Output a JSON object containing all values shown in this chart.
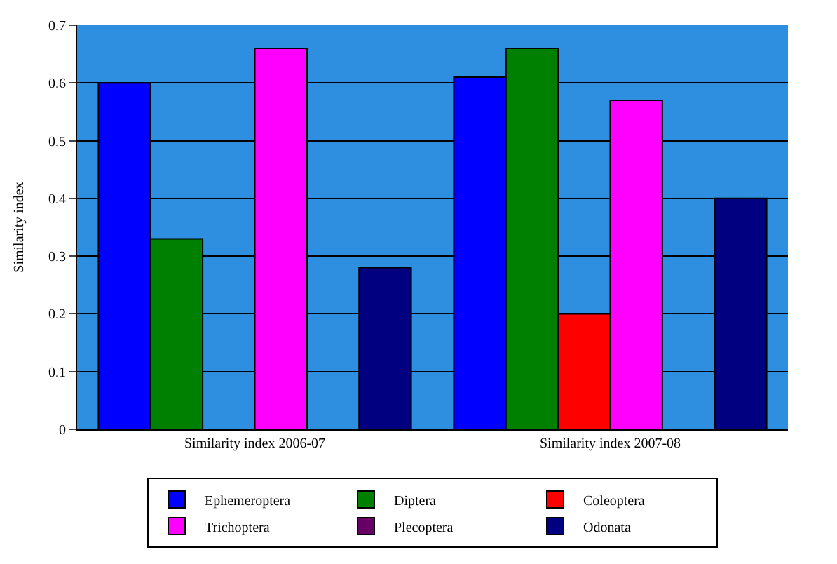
{
  "chart_data": {
    "type": "bar",
    "ylabel": "Similarity index",
    "categories": [
      "Similarity index 2006-07",
      "Similarity index 2007-08"
    ],
    "series": [
      {
        "name": "Ephemeroptera",
        "color": "#0000ff",
        "values": [
          0.6,
          0.61
        ]
      },
      {
        "name": "Diptera",
        "color": "#008000",
        "values": [
          0.33,
          0.66
        ]
      },
      {
        "name": "Coleoptera",
        "color": "#ff0000",
        "values": [
          null,
          0.2
        ]
      },
      {
        "name": "Trichoptera",
        "color": "#ff00ff",
        "values": [
          0.66,
          0.57
        ]
      },
      {
        "name": "Plecoptera",
        "color": "#660066",
        "values": [
          null,
          null
        ]
      },
      {
        "name": "Odonata",
        "color": "#000080",
        "values": [
          0.28,
          0.4
        ]
      }
    ],
    "ylim": [
      0,
      0.7
    ],
    "yticks": [
      0,
      0.1,
      0.2,
      0.3,
      0.4,
      0.5,
      0.6,
      0.7
    ],
    "grid": "y",
    "legend": "bottom"
  }
}
